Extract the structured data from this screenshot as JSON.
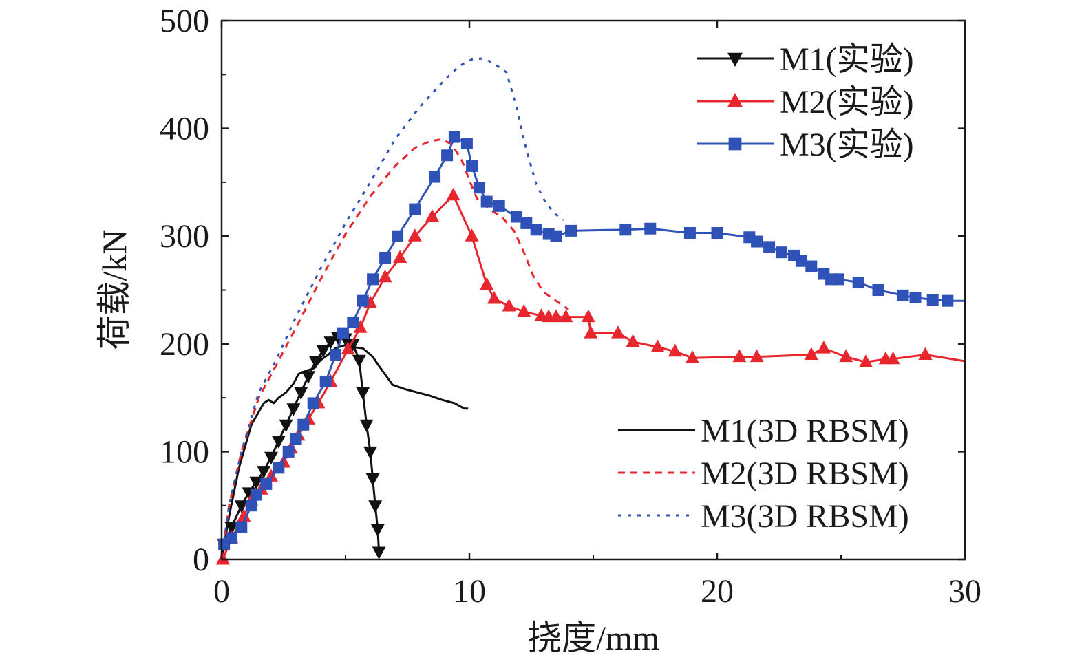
{
  "chart_data": {
    "type": "line",
    "title": "",
    "xlabel": "挠度/mm",
    "ylabel": "荷载/kN",
    "xlim": [
      0,
      30
    ],
    "ylim": [
      0,
      500
    ],
    "xticks": [
      0,
      10,
      20,
      30
    ],
    "yticks": [
      0,
      100,
      200,
      300,
      400,
      500
    ],
    "grid": false,
    "legend_exp_position": "top-right",
    "legend_sim_position": "bottom-right",
    "series": [
      {
        "name": "M1(实验)",
        "kind": "experiment",
        "color": "#111111",
        "marker": "triangle-down",
        "x": [
          0.1,
          0.4,
          0.8,
          1.1,
          1.4,
          1.7,
          2.0,
          2.3,
          2.6,
          2.9,
          3.2,
          3.5,
          3.8,
          4.1,
          4.4,
          4.7,
          5.0,
          5.3,
          5.55,
          5.7,
          5.85,
          6.0,
          6.1,
          6.2,
          6.3,
          6.35
        ],
        "y": [
          14,
          30,
          50,
          62,
          72,
          82,
          95,
          110,
          125,
          140,
          155,
          170,
          184,
          194,
          202,
          206,
          205,
          200,
          185,
          155,
          125,
          100,
          75,
          50,
          28,
          7
        ]
      },
      {
        "name": "M2(实验)",
        "kind": "experiment",
        "color": "#e8262d",
        "marker": "triangle-up",
        "x": [
          0.05,
          0.4,
          0.9,
          1.2,
          1.6,
          2.0,
          2.5,
          2.8,
          3.1,
          3.5,
          3.9,
          4.4,
          5.1,
          5.6,
          6.0,
          6.6,
          7.2,
          7.8,
          8.5,
          9.35,
          10.1,
          10.7,
          11.0,
          11.6,
          12.2,
          12.9,
          13.2,
          13.5,
          13.9,
          14.8,
          14.9,
          16.0,
          16.6,
          17.6,
          18.3,
          19.0,
          20.9,
          21.6,
          23.8,
          24.3,
          25.2,
          26.0,
          26.8,
          27.1,
          28.4,
          30.0
        ],
        "y": [
          0,
          20,
          40,
          55,
          65,
          77,
          90,
          103,
          115,
          130,
          145,
          165,
          195,
          215,
          238,
          262,
          280,
          300,
          318,
          338,
          300,
          255,
          242,
          235,
          230,
          226,
          225,
          225,
          225,
          225,
          210,
          210,
          202,
          197,
          193,
          187,
          188,
          188,
          190,
          196,
          188,
          183,
          186,
          186,
          190,
          184
        ]
      },
      {
        "name": "M3(实验)",
        "kind": "experiment",
        "color": "#2e52b8",
        "marker": "square",
        "x": [
          0.1,
          0.4,
          0.8,
          1.2,
          1.4,
          1.8,
          2.3,
          2.7,
          3.0,
          3.3,
          3.7,
          4.2,
          4.6,
          4.9,
          5.3,
          5.7,
          6.1,
          6.6,
          7.1,
          7.8,
          8.6,
          9.1,
          9.4,
          9.9,
          10.1,
          10.4,
          10.7,
          11.2,
          11.9,
          12.3,
          12.7,
          13.2,
          13.5,
          14.1,
          16.3,
          17.3,
          18.9,
          20.0,
          21.3,
          21.6,
          22.1,
          22.6,
          23.1,
          23.4,
          23.8,
          24.3,
          24.6,
          24.9,
          25.7,
          26.5,
          27.5,
          28.0,
          28.7,
          29.3,
          30.0
        ],
        "y": [
          14,
          20,
          30,
          50,
          60,
          70,
          85,
          100,
          112,
          125,
          145,
          165,
          190,
          210,
          220,
          240,
          260,
          280,
          300,
          325,
          355,
          375,
          392,
          386,
          365,
          345,
          332,
          328,
          318,
          312,
          306,
          302,
          300,
          305,
          306,
          307,
          303,
          303,
          299,
          295,
          290,
          285,
          282,
          277,
          272,
          265,
          260,
          260,
          257,
          250,
          245,
          243,
          241,
          240,
          240
        ]
      },
      {
        "name": "M1(3D RBSM)",
        "kind": "simulation",
        "color": "#111111",
        "dash": "solid",
        "x": [
          0,
          0.3,
          0.7,
          1.2,
          1.7,
          1.9,
          2.1,
          2.3,
          2.6,
          2.9,
          3.1,
          3.4,
          3.7,
          4.0,
          4.3,
          4.6,
          5.0,
          5.3,
          5.7,
          6.1,
          6.4,
          6.9,
          7.4,
          7.9,
          8.4,
          8.9,
          9.4,
          9.8,
          9.95
        ],
        "y": [
          0,
          40,
          85,
          125,
          145,
          148,
          145,
          150,
          155,
          163,
          172,
          175,
          177,
          185,
          190,
          196,
          199,
          197,
          196,
          188,
          178,
          162,
          158,
          155,
          152,
          148,
          145,
          140,
          140
        ]
      },
      {
        "name": "M2(3D RBSM)",
        "kind": "simulation",
        "color": "#e8262d",
        "dash": "10 8",
        "x": [
          0,
          0.3,
          0.8,
          1.5,
          2.2,
          3.0,
          4.0,
          5.0,
          6.0,
          7.0,
          7.8,
          8.4,
          8.9,
          9.3,
          9.7,
          10.0,
          10.3,
          10.8,
          11.3,
          11.8,
          12.2,
          12.6,
          13.0,
          13.5,
          14.0
        ],
        "y": [
          0,
          50,
          100,
          150,
          180,
          215,
          260,
          302,
          337,
          365,
          382,
          388,
          390,
          385,
          370,
          352,
          335,
          325,
          318,
          305,
          285,
          262,
          248,
          240,
          232
        ]
      },
      {
        "name": "M3(3D RBSM)",
        "kind": "simulation",
        "color": "#2e52b8",
        "dash": "5 9",
        "x": [
          0,
          0.3,
          0.8,
          1.5,
          2.2,
          3.0,
          4.0,
          5.0,
          6.0,
          7.0,
          8.0,
          9.0,
          9.6,
          10.1,
          10.6,
          11.0,
          11.5,
          11.9,
          12.3,
          12.7,
          13.1,
          13.5,
          13.8
        ],
        "y": [
          0,
          50,
          100,
          155,
          185,
          225,
          270,
          312,
          350,
          390,
          420,
          445,
          458,
          464,
          465,
          460,
          452,
          420,
          380,
          348,
          330,
          320,
          315
        ]
      }
    ]
  }
}
